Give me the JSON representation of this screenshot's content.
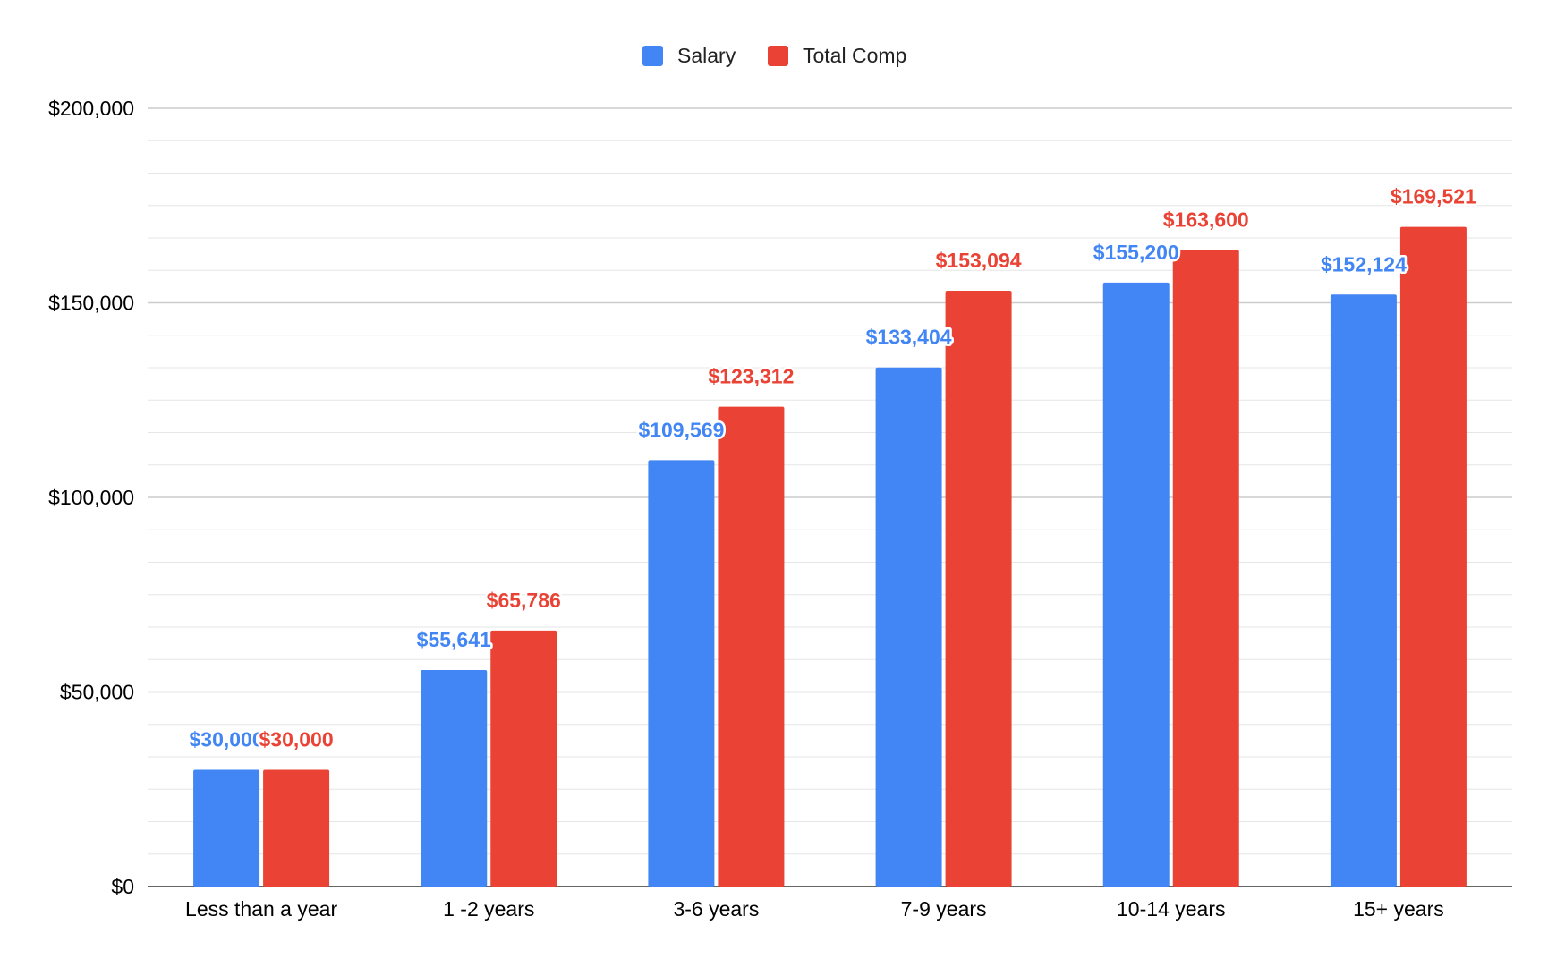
{
  "chart_data": {
    "type": "bar",
    "categories": [
      "Less than a year",
      "1 -2 years",
      "3-6 years",
      "7-9 years",
      "10-14 years",
      "15+ years"
    ],
    "series": [
      {
        "name": "Salary",
        "color": "#4285f4",
        "values": [
          30000,
          55641,
          109569,
          133404,
          155200,
          152124
        ],
        "labels": [
          "$30,000",
          "$55,641",
          "$109,569",
          "$133,404",
          "$155,200",
          "$152,124"
        ]
      },
      {
        "name": "Total Comp",
        "color": "#ea4335",
        "values": [
          30000,
          65786,
          123312,
          153094,
          163600,
          169521
        ],
        "labels": [
          "$30,000",
          "$65,786",
          "$123,312",
          "$153,094",
          "$163,600",
          "$169,521"
        ]
      }
    ],
    "ylim": [
      0,
      200000
    ],
    "yticks": [
      0,
      50000,
      100000,
      150000,
      200000
    ],
    "ytick_labels": [
      "$0",
      "$50,000",
      "$100,000",
      "$150,000",
      "$200,000"
    ],
    "minor_gridlines_per_major": 6,
    "grid": true,
    "legend_position": "top-center",
    "title": "",
    "xlabel": "",
    "ylabel": ""
  }
}
